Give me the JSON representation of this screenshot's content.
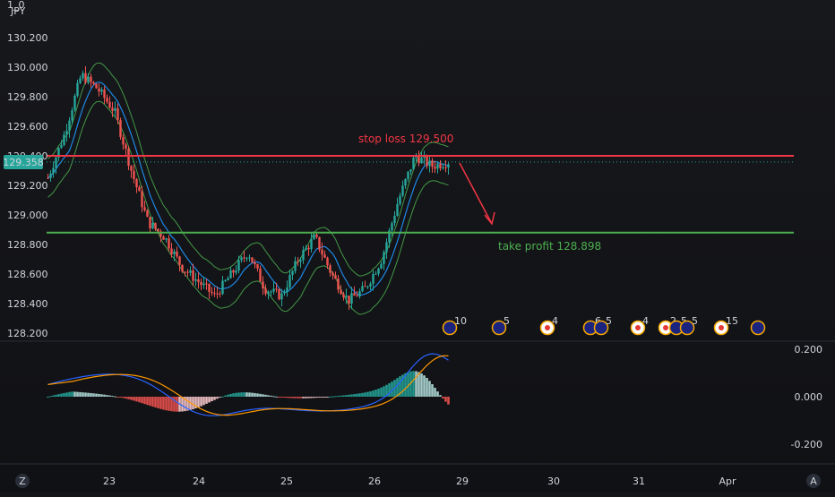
{
  "symbol": "JPY",
  "corner": {
    "top_left_fragment": "1_0"
  },
  "price_axis_ticks": [
    "130.200",
    "130.000",
    "129.800",
    "129.600",
    "129.400",
    "129.200",
    "129.000",
    "128.800",
    "128.600",
    "128.400",
    "128.200"
  ],
  "current_price_label": "129.358",
  "osc_axis_ticks": [
    "0.200",
    "0.000",
    "-0.200"
  ],
  "x_ticks": [
    "23",
    "24",
    "25",
    "26",
    "29",
    "30",
    "31",
    "Apr"
  ],
  "bottom_left_badge": "Z",
  "bottom_right_badge": "A",
  "stop_loss": {
    "label": "stop loss 129.500",
    "value": 129.5,
    "color": "#f23645"
  },
  "take_profit": {
    "label": "take profit 128.898",
    "value": 128.898,
    "color": "#4caf50"
  },
  "event_markers": [
    {
      "kind": "flag",
      "count": "10"
    },
    {
      "kind": "flag",
      "count": "5"
    },
    {
      "kind": "jp",
      "count": "4"
    },
    {
      "kind": "flag",
      "count": "6"
    },
    {
      "kind": "flag",
      "count": "5"
    },
    {
      "kind": "jp",
      "count": "4"
    },
    {
      "kind": "jp",
      "count": "2"
    },
    {
      "kind": "flag",
      "count": "5"
    },
    {
      "kind": "flag",
      "count": "5"
    },
    {
      "kind": "jp",
      "count": "15"
    },
    {
      "kind": "flag",
      "count": ""
    }
  ],
  "colors": {
    "up": "#26a69a",
    "down": "#ef5350",
    "macd": "#2962ff",
    "signal": "#ff9800",
    "band": "#4caf50"
  },
  "chart_data": {
    "type": "candlestick",
    "ylim": [
      128.2,
      130.2
    ],
    "x": [
      "23",
      "24",
      "25",
      "26",
      "29",
      "30",
      "31",
      "Apr"
    ],
    "price_path": [
      129.25,
      129.55,
      129.95,
      129.85,
      129.7,
      129.3,
      128.95,
      128.85,
      128.65,
      128.55,
      128.45,
      128.6,
      128.75,
      128.5,
      128.45,
      128.7,
      128.85,
      128.6,
      128.42,
      128.5,
      128.7,
      129.1,
      129.4,
      129.33,
      129.36
    ],
    "macd_ylim": [
      -0.3,
      0.25
    ]
  }
}
